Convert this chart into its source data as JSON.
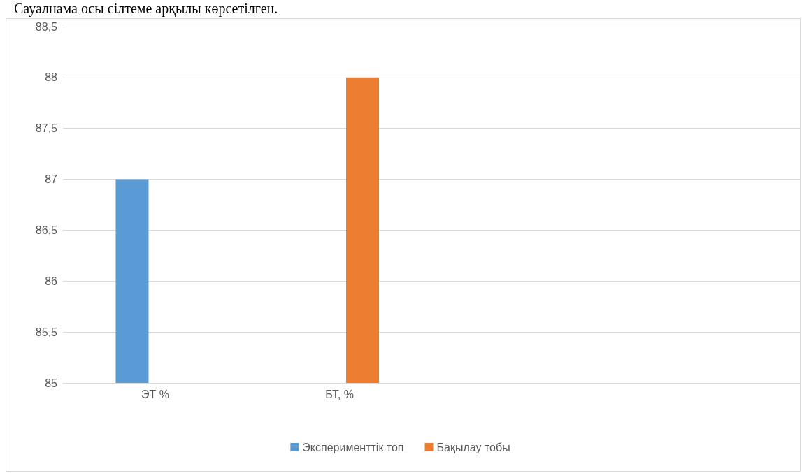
{
  "chart_data": {
    "type": "bar",
    "annotations": [
      "Сауалнама осы сілтеме арқылы көрсетілген."
    ],
    "categories": [
      "ЭТ %",
      "БТ, %",
      null,
      null
    ],
    "series": [
      {
        "name": "Эксперименттік топ",
        "color": "#5b9bd5",
        "values": [
          87,
          null,
          null,
          null
        ]
      },
      {
        "name": "Бақылау тобы",
        "color": "#ed7d31",
        "values": [
          null,
          88,
          null,
          null
        ]
      }
    ],
    "ylim": [
      85,
      88.5
    ],
    "yticks": [
      {
        "value": 85,
        "label": "85"
      },
      {
        "value": 85.5,
        "label": "85,5"
      },
      {
        "value": 86,
        "label": "86"
      },
      {
        "value": 86.5,
        "label": "86,5"
      },
      {
        "value": 87,
        "label": "87"
      },
      {
        "value": 87.5,
        "label": "87,5"
      },
      {
        "value": 88,
        "label": "88"
      },
      {
        "value": 88.5,
        "label": "88,5"
      }
    ],
    "grid": "y",
    "legend": "bottom"
  }
}
